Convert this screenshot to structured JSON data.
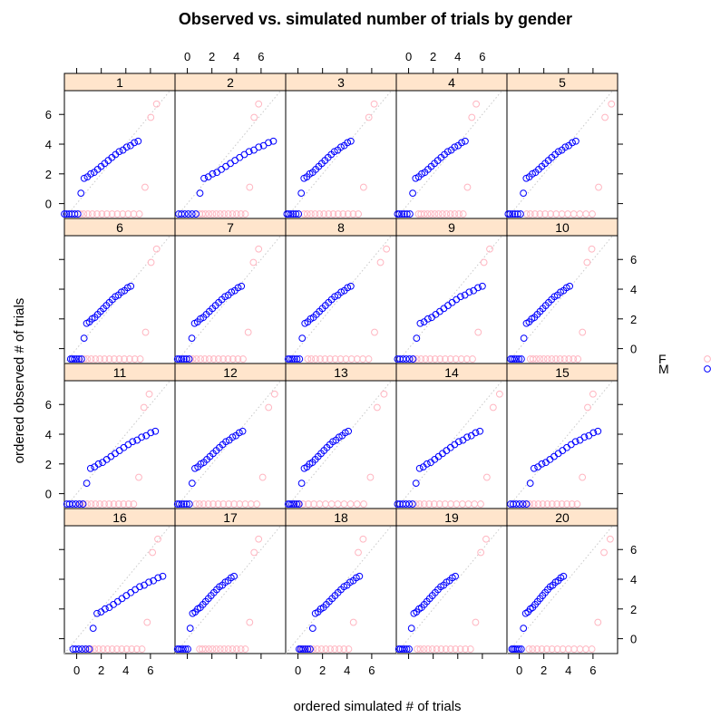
{
  "chart_data": {
    "type": "scatter",
    "title": "Observed vs. simulated number of trials by gender",
    "xlabel": "ordered simulated # of trials",
    "ylabel": "ordered observed # of trials",
    "xlim": [
      -1,
      8
    ],
    "ylim": [
      -1,
      7.6
    ],
    "x_ticks": [
      0,
      2,
      4,
      6
    ],
    "y_ticks": [
      0,
      2,
      4,
      6
    ],
    "reference_line": "y = x (dotted)",
    "legend": {
      "position": "right",
      "entries": [
        {
          "label": "F",
          "color": "#ffb6c1"
        },
        {
          "label": "M",
          "color": "#0000ff"
        }
      ]
    },
    "panels": [
      "1",
      "2",
      "3",
      "4",
      "5",
      "6",
      "7",
      "8",
      "9",
      "10",
      "11",
      "12",
      "13",
      "14",
      "15",
      "16",
      "17",
      "18",
      "19",
      "20"
    ],
    "series_colors": {
      "F": "#ffb6c1",
      "M": "#0000ff"
    },
    "observed_F": [
      -0.7,
      -0.7,
      -0.7,
      -0.7,
      -0.7,
      -0.7,
      -0.7,
      -0.7,
      -0.7,
      -0.7,
      -0.7,
      -0.7,
      -0.7,
      1.1,
      5.8,
      6.7
    ],
    "observed_M": [
      -0.7,
      -0.7,
      -0.7,
      -0.7,
      -0.7,
      -0.7,
      0.7,
      1.7,
      1.8,
      2.0,
      2.1,
      2.3,
      2.5,
      2.7,
      2.9,
      3.1,
      3.3,
      3.5,
      3.6,
      3.8,
      3.9,
      4.1,
      4.2
    ],
    "simulated_quantile_endpoints": {
      "F": [
        [
          0.3,
          6.5
        ],
        [
          1.0,
          5.8
        ],
        [
          0.5,
          6.2
        ],
        [
          0.8,
          5.5
        ],
        [
          0.6,
          7.5
        ],
        [
          0.6,
          6.5
        ],
        [
          0.2,
          5.8
        ],
        [
          0.8,
          7.2
        ],
        [
          0.4,
          6.6
        ],
        [
          0.9,
          5.9
        ],
        [
          0.3,
          5.9
        ],
        [
          0.7,
          7.1
        ],
        [
          -0.3,
          7.0
        ],
        [
          0.6,
          7.4
        ],
        [
          0.3,
          6.0
        ],
        [
          0.9,
          6.6
        ],
        [
          1.0,
          5.8
        ],
        [
          0.1,
          5.3
        ],
        [
          0.7,
          6.3
        ],
        [
          0.8,
          7.4
        ]
      ],
      "M": [
        [
          -1.0,
          5.0
        ],
        [
          -0.7,
          7.0
        ],
        [
          -0.9,
          4.3
        ],
        [
          -0.9,
          4.6
        ],
        [
          -0.9,
          4.6
        ],
        [
          -0.5,
          4.4
        ],
        [
          -0.8,
          4.4
        ],
        [
          -0.8,
          4.3
        ],
        [
          -0.9,
          6.0
        ],
        [
          -0.7,
          4.1
        ],
        [
          -0.8,
          6.4
        ],
        [
          -0.8,
          4.5
        ],
        [
          -0.8,
          4.1
        ],
        [
          -0.9,
          5.8
        ],
        [
          -0.7,
          6.4
        ],
        [
          -0.3,
          7.0
        ],
        [
          -0.8,
          3.8
        ],
        [
          0.1,
          5.0
        ],
        [
          -0.8,
          3.8
        ],
        [
          -0.6,
          3.6
        ]
      ]
    }
  }
}
